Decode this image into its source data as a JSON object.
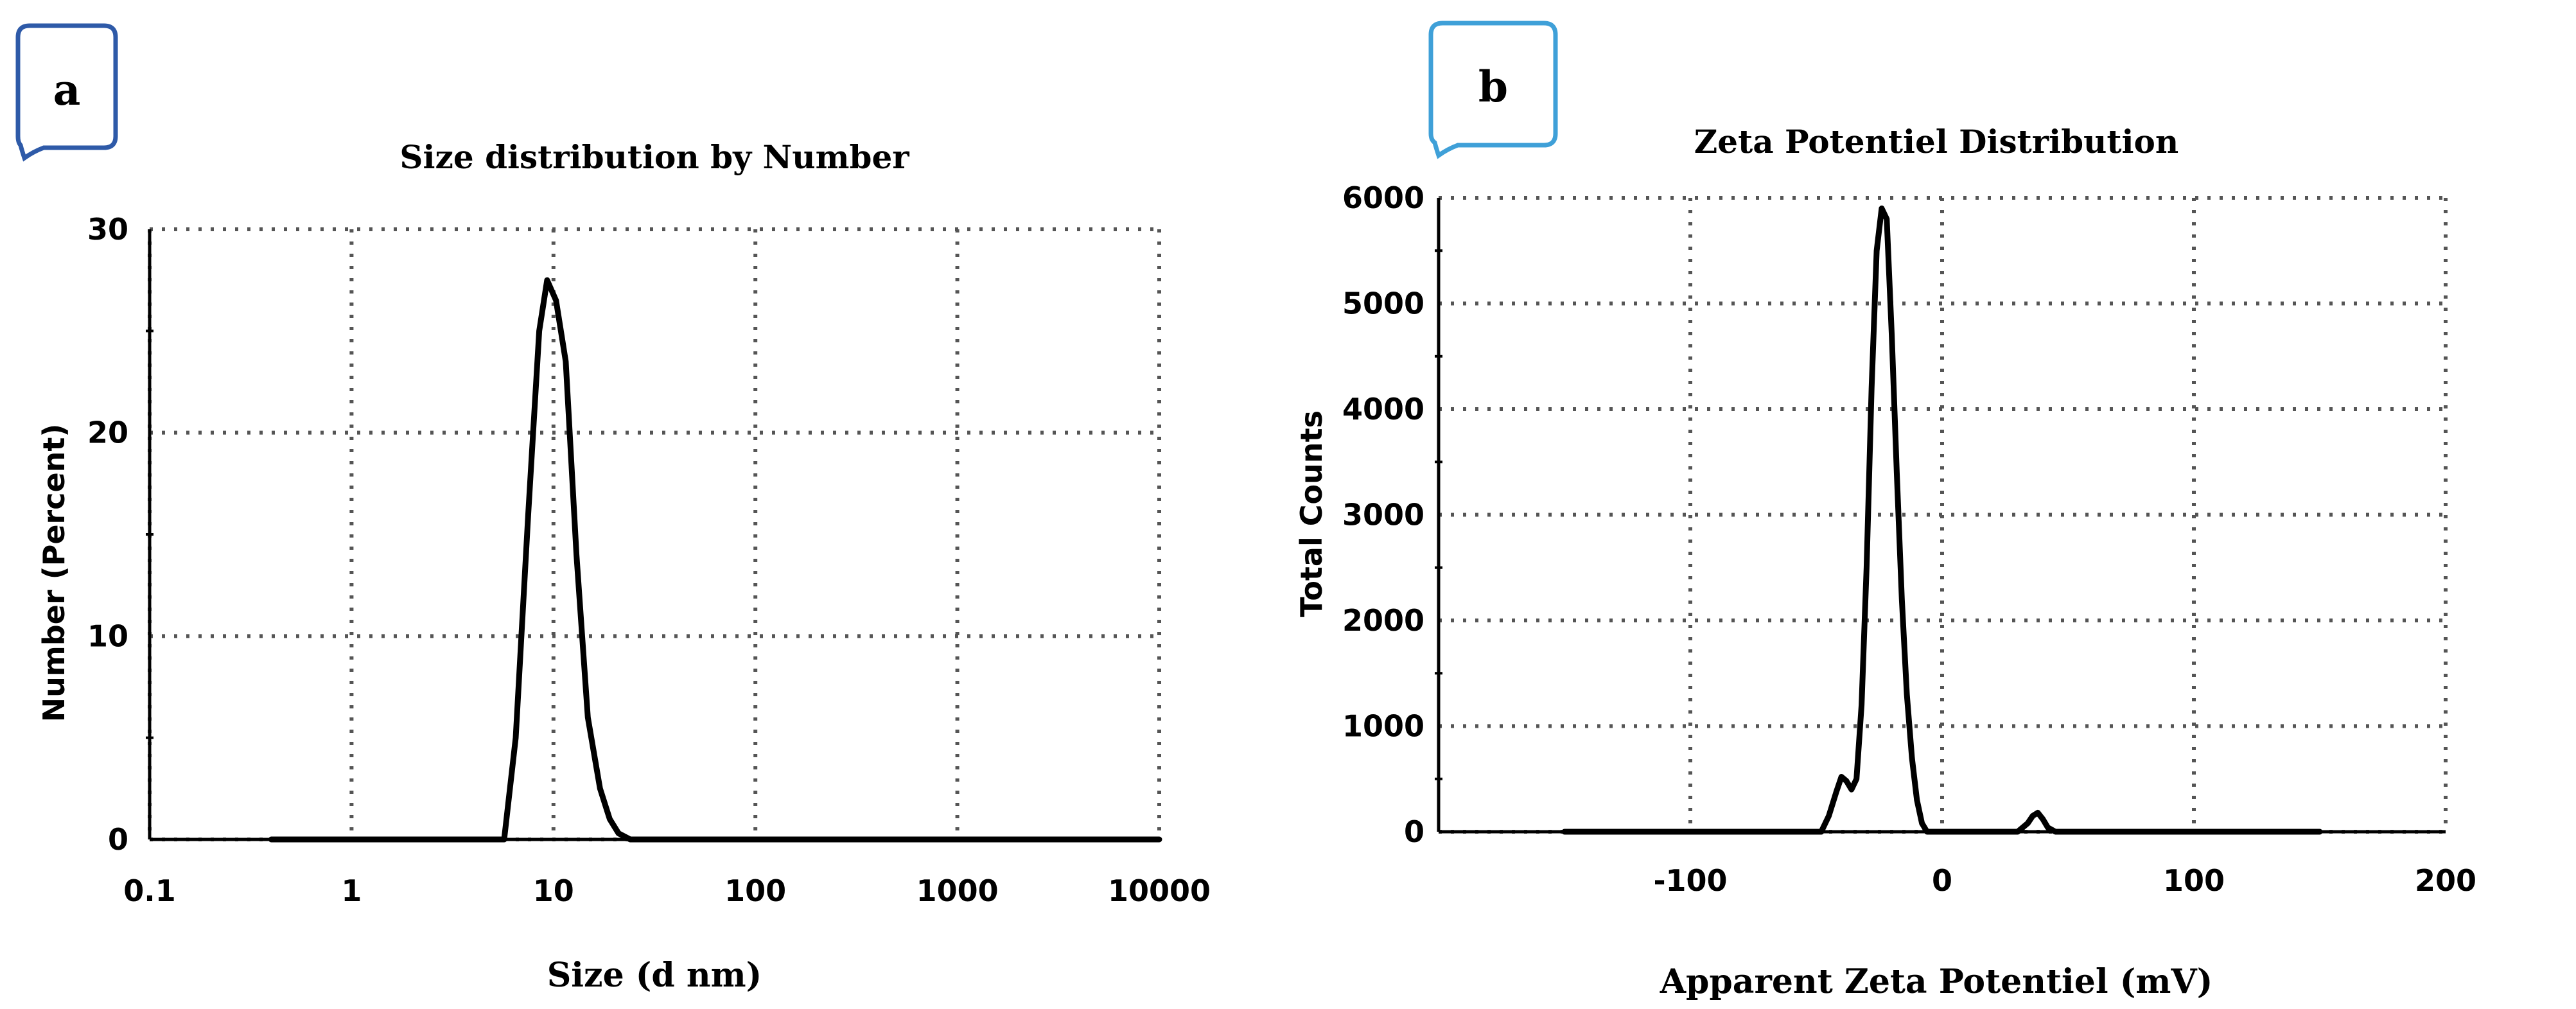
{
  "panels": [
    {
      "letter": "a",
      "badge_color": "#2e5aa8"
    },
    {
      "letter": "b",
      "badge_color": "#3fa0d8"
    }
  ],
  "chart_data": [
    {
      "type": "line",
      "title": "Size distribution by Number",
      "xlabel": "Size (d nm)",
      "ylabel": "Number (Percent)",
      "xscale": "log",
      "xlim": [
        0.1,
        10000
      ],
      "ylim": [
        0,
        30
      ],
      "xticks": [
        0.1,
        1,
        10,
        100,
        1000,
        10000
      ],
      "xtick_labels": [
        "0.1",
        "1",
        "10",
        "100",
        "1000",
        "10000"
      ],
      "yticks": [
        0,
        10,
        20,
        30
      ],
      "ytick_labels": [
        "0",
        "10",
        "20",
        "30"
      ],
      "grid": true,
      "series": [
        {
          "x": [
            0.4,
            1,
            3,
            5.7,
            6.5,
            7.5,
            8.5,
            9.3,
            10.3,
            11.5,
            13,
            14.8,
            17,
            19,
            21,
            24,
            30,
            100,
            1000,
            10000
          ],
          "y": [
            0,
            0,
            0,
            0,
            5,
            16,
            25,
            27.5,
            26.5,
            23.5,
            14,
            6,
            2.5,
            1,
            0.3,
            0,
            0,
            0,
            0,
            0
          ]
        }
      ]
    },
    {
      "type": "line",
      "title": "Zeta Potentiel Distribution",
      "xlabel": "Apparent Zeta Potentiel (mV)",
      "ylabel": "Total Counts",
      "xlim": [
        -200,
        200
      ],
      "ylim": [
        0,
        6000
      ],
      "xticks": [
        -100,
        0,
        100,
        200
      ],
      "xtick_labels": [
        "-100",
        "0",
        "100",
        "200"
      ],
      "yticks": [
        0,
        1000,
        2000,
        3000,
        4000,
        5000,
        6000
      ],
      "ytick_labels": [
        "0",
        "1000",
        "2000",
        "3000",
        "4000",
        "5000",
        "6000"
      ],
      "grid": true,
      "series": [
        {
          "x": [
            -150,
            -48,
            -45,
            -42,
            -40,
            -38,
            -36,
            -34,
            -32,
            -30,
            -28,
            -26,
            -24,
            -22,
            -20,
            -18,
            -16,
            -14,
            -12,
            -10,
            -8,
            -6,
            -3,
            30,
            34,
            36,
            38,
            40,
            42,
            45,
            150
          ],
          "y": [
            0,
            0,
            150,
            380,
            520,
            480,
            400,
            500,
            1200,
            2500,
            4200,
            5500,
            5900,
            5800,
            4700,
            3400,
            2200,
            1300,
            700,
            300,
            80,
            0,
            0,
            0,
            80,
            150,
            180,
            120,
            40,
            0,
            0
          ]
        }
      ]
    }
  ]
}
